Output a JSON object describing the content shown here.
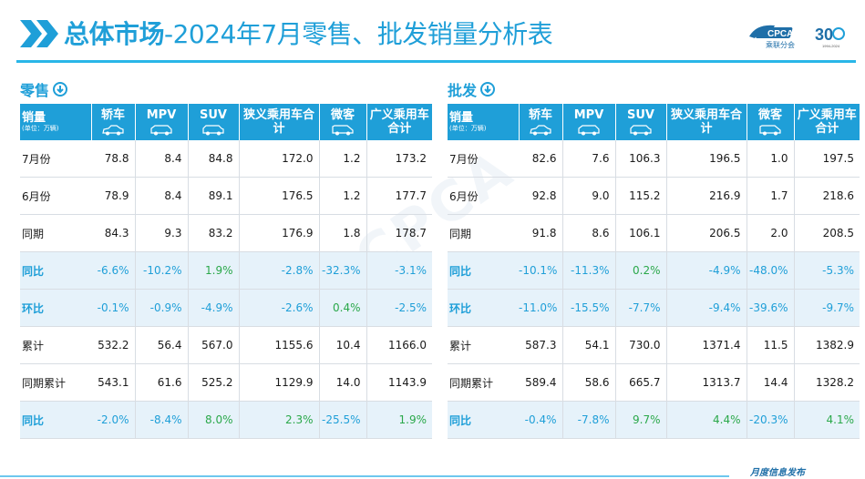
{
  "header": {
    "title_bold": "总体市场",
    "title_rest": "-2024年7月零售、批发销量分析表",
    "logo_text": "CPCA",
    "logo_sub": "乘联分会",
    "logo_num": "30",
    "logo_years": "1994-2024"
  },
  "retail": {
    "title": "零售",
    "col_first": "销量",
    "unit": "(单位：万辆)",
    "cols": [
      "轿车",
      "MPV",
      "SUV",
      "狭义乘用车合计",
      "微客",
      "广义乘用车合计"
    ],
    "rows": [
      {
        "label": "7月份",
        "values": [
          "78.8",
          "8.4",
          "84.8",
          "172.0",
          "1.2",
          "173.2"
        ]
      },
      {
        "label": "6月份",
        "values": [
          "78.9",
          "8.4",
          "89.1",
          "176.5",
          "1.2",
          "177.7"
        ]
      },
      {
        "label": "同期",
        "values": [
          "84.3",
          "9.3",
          "83.2",
          "176.9",
          "1.8",
          "178.7"
        ]
      },
      {
        "label": "同比",
        "values": [
          "-6.6%",
          "-10.2%",
          "1.9%",
          "-2.8%",
          "-32.3%",
          "-3.1%"
        ]
      },
      {
        "label": "环比",
        "values": [
          "-0.1%",
          "-0.9%",
          "-4.9%",
          "-2.6%",
          "0.4%",
          "-2.5%"
        ]
      },
      {
        "label": "累计",
        "values": [
          "532.2",
          "56.4",
          "567.0",
          "1155.6",
          "10.4",
          "1166.0"
        ]
      },
      {
        "label": "同期累计",
        "values": [
          "543.1",
          "61.6",
          "525.2",
          "1129.9",
          "14.0",
          "1143.9"
        ]
      },
      {
        "label": "同比",
        "values": [
          "-2.0%",
          "-8.4%",
          "8.0%",
          "2.3%",
          "-25.5%",
          "1.9%"
        ]
      }
    ]
  },
  "wholesale": {
    "title": "批发",
    "col_first": "销量",
    "unit": "(单位：万辆)",
    "cols": [
      "轿车",
      "MPV",
      "SUV",
      "狭义乘用车合计",
      "微客",
      "广义乘用车合计"
    ],
    "rows": [
      {
        "label": "7月份",
        "values": [
          "82.6",
          "7.6",
          "106.3",
          "196.5",
          "1.0",
          "197.5"
        ]
      },
      {
        "label": "6月份",
        "values": [
          "92.8",
          "9.0",
          "115.2",
          "216.9",
          "1.7",
          "218.6"
        ]
      },
      {
        "label": "同期",
        "values": [
          "91.8",
          "8.6",
          "106.1",
          "206.5",
          "2.0",
          "208.5"
        ]
      },
      {
        "label": "同比",
        "values": [
          "-10.1%",
          "-11.3%",
          "0.2%",
          "-4.9%",
          "-48.0%",
          "-5.3%"
        ]
      },
      {
        "label": "环比",
        "values": [
          "-11.0%",
          "-15.5%",
          "-7.7%",
          "-9.4%",
          "-39.6%",
          "-9.7%"
        ]
      },
      {
        "label": "累计",
        "values": [
          "587.3",
          "54.1",
          "730.0",
          "1371.4",
          "11.5",
          "1382.9"
        ]
      },
      {
        "label": "同期累计",
        "values": [
          "589.4",
          "58.6",
          "665.7",
          "1313.7",
          "14.4",
          "1328.2"
        ]
      },
      {
        "label": "同比",
        "values": [
          "-0.4%",
          "-7.8%",
          "9.7%",
          "4.4%",
          "-20.3%",
          "4.1%"
        ]
      }
    ]
  },
  "footer": {
    "text": "月度信息发布"
  },
  "colors": {
    "accent": "#1f9fd8",
    "positive": "#2aa84a",
    "ratio_bg": "#e6f2fa"
  }
}
